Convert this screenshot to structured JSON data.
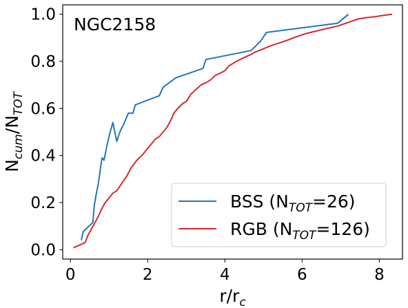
{
  "chart_data": {
    "type": "line",
    "annotation": "NGC2158",
    "xlabel": {
      "main": "r/r",
      "sub": "c"
    },
    "ylabel": {
      "main1": "N",
      "sub1": "cum",
      "main2": "/N",
      "sub2": "TOT"
    },
    "xlim": [
      -0.2,
      8.6
    ],
    "ylim": [
      -0.04,
      1.04
    ],
    "xticks": [
      0,
      2,
      4,
      6,
      8
    ],
    "yticks": [
      0.0,
      0.2,
      0.4,
      0.6,
      0.8,
      1.0
    ],
    "xtick_labels": [
      "0",
      "2",
      "4",
      "6",
      "8"
    ],
    "ytick_labels": [
      "0.0",
      "0.2",
      "0.4",
      "0.6",
      "0.8",
      "1.0"
    ],
    "legend_position": "lower-right",
    "series": [
      {
        "name_main": "BSS (N",
        "name_sub": "TOT",
        "name_tail": "=26)",
        "color": "#1f77b4",
        "x": [
          0.28,
          0.33,
          0.58,
          0.62,
          0.66,
          0.71,
          0.75,
          0.78,
          0.82,
          0.87,
          0.92,
          0.97,
          1.03,
          1.1,
          1.2,
          1.28,
          1.4,
          1.5,
          1.62,
          1.68,
          2.3,
          2.4,
          2.73,
          3.43,
          3.51,
          4.68,
          4.92,
          5.08,
          6.92,
          7.2
        ],
        "y": [
          0.04,
          0.077,
          0.115,
          0.19,
          0.23,
          0.27,
          0.31,
          0.35,
          0.39,
          0.38,
          0.42,
          0.46,
          0.5,
          0.54,
          0.46,
          0.5,
          0.54,
          0.58,
          0.58,
          0.615,
          0.654,
          0.69,
          0.73,
          0.77,
          0.808,
          0.846,
          0.885,
          0.923,
          0.962,
          1.0
        ]
      },
      {
        "name_main": "RGB (N",
        "name_sub": "TOT",
        "name_tail": "=126)",
        "color": "#d62728",
        "x": [
          0.08,
          0.38,
          0.45,
          0.55,
          0.62,
          0.72,
          0.8,
          0.9,
          1.0,
          1.1,
          1.2,
          1.32,
          1.45,
          1.58,
          1.72,
          1.85,
          2.0,
          2.1,
          2.2,
          2.3,
          2.4,
          2.5,
          2.6,
          2.68,
          2.78,
          2.9,
          3.0,
          3.12,
          3.25,
          3.38,
          3.52,
          3.62,
          3.75,
          3.88,
          4.0,
          4.1,
          4.2,
          4.3,
          4.42,
          4.55,
          4.68,
          4.8,
          4.95,
          5.1,
          5.25,
          5.45,
          5.62,
          5.78,
          5.95,
          6.15,
          6.4,
          6.65,
          6.92,
          7.1,
          7.28,
          7.45,
          7.65,
          7.9,
          8.1,
          8.33
        ],
        "y": [
          0.008,
          0.03,
          0.06,
          0.09,
          0.11,
          0.14,
          0.17,
          0.2,
          0.22,
          0.24,
          0.25,
          0.28,
          0.31,
          0.35,
          0.38,
          0.4,
          0.43,
          0.45,
          0.47,
          0.48,
          0.5,
          0.52,
          0.55,
          0.58,
          0.6,
          0.62,
          0.63,
          0.66,
          0.68,
          0.7,
          0.71,
          0.72,
          0.74,
          0.75,
          0.76,
          0.78,
          0.79,
          0.8,
          0.81,
          0.82,
          0.83,
          0.84,
          0.85,
          0.86,
          0.87,
          0.88,
          0.89,
          0.9,
          0.91,
          0.92,
          0.93,
          0.94,
          0.95,
          0.96,
          0.97,
          0.98,
          0.985,
          0.99,
          0.995,
          1.0
        ]
      }
    ]
  }
}
